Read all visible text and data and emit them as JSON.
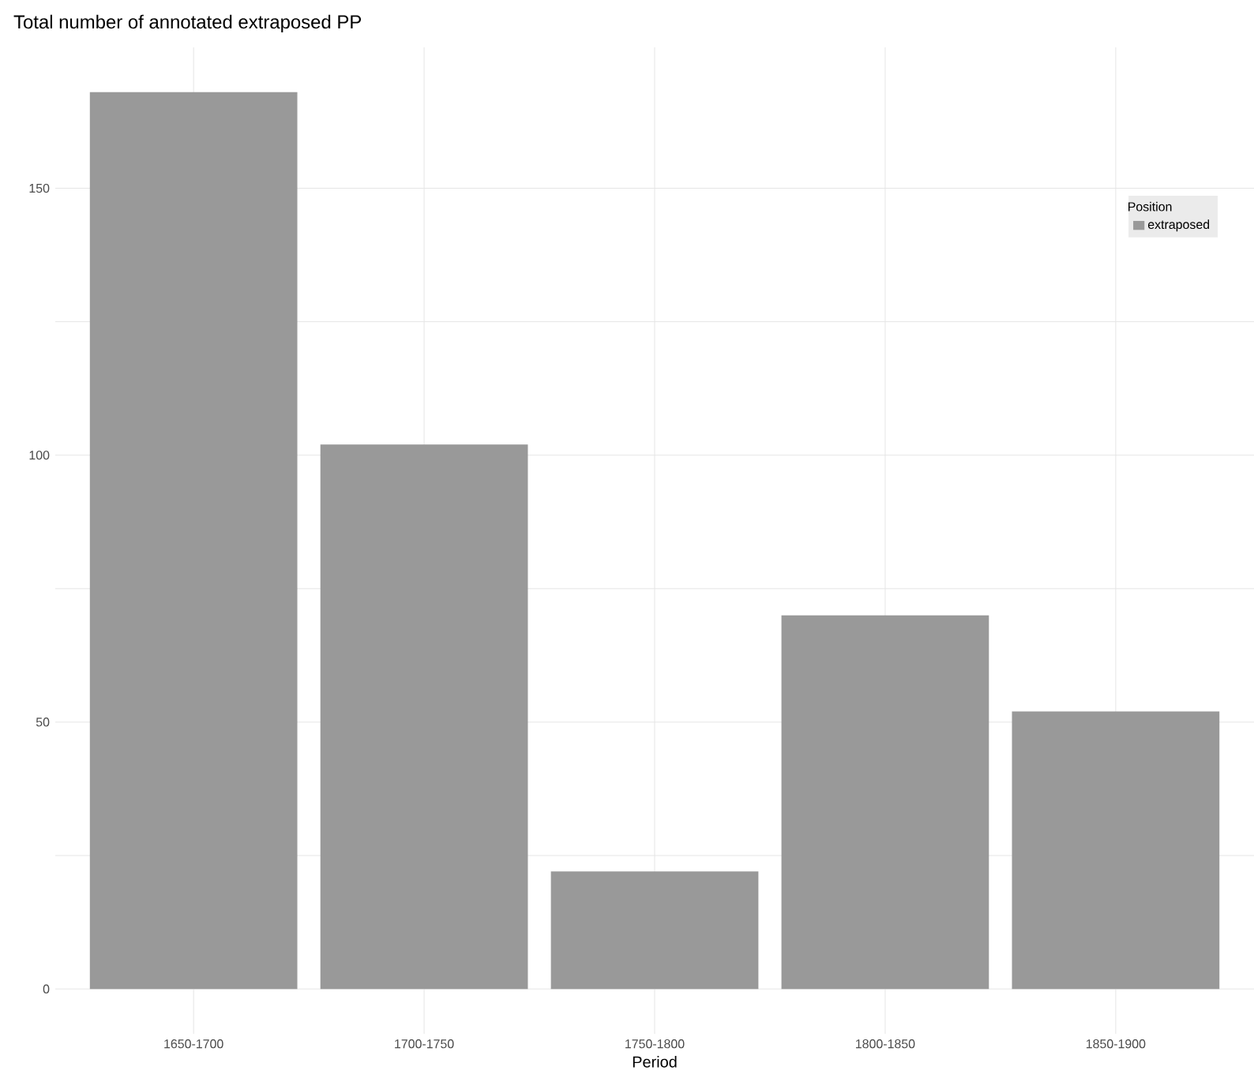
{
  "chart_data": {
    "type": "bar",
    "title": "Total number of annotated extraposed PP",
    "xlabel": "Period",
    "categories": [
      "1650-1700",
      "1700-1750",
      "1750-1800",
      "1800-1850",
      "1850-1900"
    ],
    "series": [
      {
        "name": "extraposed",
        "color": "#999999",
        "values": [
          168,
          102,
          22,
          70,
          52
        ]
      }
    ],
    "legend_title": "Position",
    "legend": "top right",
    "ylim": [
      -8.4,
      176.4
    ],
    "yticks": [
      0,
      {
        "value": 25,
        "label": null
      },
      50,
      {
        "value": 75,
        "label": null
      },
      100,
      {
        "value": 125,
        "label": null
      },
      150
    ],
    "grid": true
  }
}
